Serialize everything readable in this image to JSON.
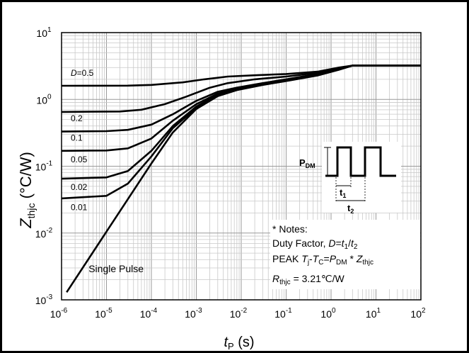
{
  "chart_data": {
    "type": "line",
    "x_scale": "log",
    "y_scale": "log",
    "xlim": [
      1e-06,
      100
    ],
    "ylim": [
      0.001,
      10
    ],
    "grid": true,
    "x_ticks": [
      {
        "base": "10",
        "exp": "-6"
      },
      {
        "base": "10",
        "exp": "-5"
      },
      {
        "base": "10",
        "exp": "-4"
      },
      {
        "base": "10",
        "exp": "-3"
      },
      {
        "base": "10",
        "exp": "-2"
      },
      {
        "base": "10",
        "exp": "-1"
      },
      {
        "base": "10",
        "exp": "0"
      },
      {
        "base": "10",
        "exp": "1"
      },
      {
        "base": "10",
        "exp": "2"
      }
    ],
    "y_ticks": [
      {
        "base": "10",
        "exp": "-3"
      },
      {
        "base": "10",
        "exp": "-2"
      },
      {
        "base": "10",
        "exp": "-1"
      },
      {
        "base": "10",
        "exp": "0"
      },
      {
        "base": "10",
        "exp": "1"
      }
    ],
    "xlabel": {
      "t": "t",
      "sub": "P",
      "rest": " (s)"
    },
    "ylabel": {
      "z": "Z",
      "sub": "thjc",
      "rest": " (°C/W)"
    },
    "series": [
      {
        "name": "D=0.5",
        "x": [
          1e-06,
          3e-05,
          0.0001,
          0.0005,
          0.0015,
          0.005,
          0.02,
          0.1,
          0.5,
          1.5,
          3,
          100
        ],
        "y": [
          1.6,
          1.61,
          1.65,
          1.8,
          2.0,
          2.2,
          2.3,
          2.4,
          2.6,
          3.0,
          3.21,
          3.21
        ]
      },
      {
        "name": "0.2",
        "x": [
          1e-06,
          2e-05,
          6e-05,
          0.0002,
          0.0006,
          0.002,
          0.005,
          0.02,
          0.1,
          0.5,
          1.5,
          3,
          100
        ],
        "y": [
          0.65,
          0.66,
          0.7,
          0.85,
          1.1,
          1.5,
          1.75,
          2.0,
          2.2,
          2.5,
          2.95,
          3.21,
          3.21
        ]
      },
      {
        "name": "0.1",
        "x": [
          1e-06,
          1e-05,
          3e-05,
          0.0001,
          0.0003,
          0.001,
          0.003,
          0.008,
          0.03,
          0.1,
          0.5,
          1.5,
          3,
          100
        ],
        "y": [
          0.33,
          0.335,
          0.35,
          0.42,
          0.6,
          0.95,
          1.3,
          1.5,
          1.75,
          2.0,
          2.4,
          2.9,
          3.21,
          3.21
        ]
      },
      {
        "name": "0.05",
        "x": [
          1e-06,
          1e-05,
          3e-05,
          0.0001,
          0.0003,
          0.001,
          0.003,
          0.008,
          0.03,
          0.1,
          0.5,
          1.5,
          3,
          100
        ],
        "y": [
          0.17,
          0.172,
          0.185,
          0.26,
          0.48,
          0.85,
          1.22,
          1.45,
          1.7,
          1.95,
          2.35,
          2.85,
          3.21,
          3.21
        ]
      },
      {
        "name": "0.02",
        "x": [
          1e-06,
          1e-05,
          3e-05,
          0.0001,
          0.0003,
          0.001,
          0.003,
          0.008,
          0.03,
          0.1,
          0.5,
          1.5,
          3,
          100
        ],
        "y": [
          0.065,
          0.068,
          0.085,
          0.17,
          0.4,
          0.78,
          1.18,
          1.42,
          1.68,
          1.92,
          2.32,
          2.82,
          3.21,
          3.21
        ]
      },
      {
        "name": "0.01",
        "x": [
          1e-06,
          1e-05,
          3e-05,
          0.0001,
          0.0003,
          0.001,
          0.003,
          0.008,
          0.03,
          0.1,
          0.5,
          1.5,
          3,
          100
        ],
        "y": [
          0.033,
          0.036,
          0.055,
          0.14,
          0.37,
          0.75,
          1.15,
          1.4,
          1.66,
          1.9,
          2.3,
          2.8,
          3.21,
          3.21
        ]
      },
      {
        "name": "Single Pulse",
        "x": [
          1.3e-06,
          1e-05,
          0.0001,
          0.0003,
          0.001,
          0.003,
          0.008,
          0.03,
          0.1,
          0.5,
          1.5,
          3,
          100
        ],
        "y": [
          0.0013,
          0.0105,
          0.11,
          0.32,
          0.72,
          1.12,
          1.38,
          1.65,
          1.88,
          2.28,
          2.78,
          3.21,
          3.21
        ]
      }
    ],
    "series_labels": [
      {
        "text_italic": "D",
        "text": "=0.5",
        "x": 1.6e-06,
        "y": 2.25
      },
      {
        "text": "0.2",
        "x": 1.6e-06,
        "y": 0.47
      },
      {
        "text": "0.1",
        "x": 1.6e-06,
        "y": 0.24
      },
      {
        "text": "0.05",
        "x": 1.6e-06,
        "y": 0.115
      },
      {
        "text": "0.02",
        "x": 1.6e-06,
        "y": 0.044
      },
      {
        "text": "0.01",
        "x": 1.6e-06,
        "y": 0.022
      },
      {
        "text": "Single Pulse",
        "x": 4e-06,
        "y": 0.0026
      }
    ],
    "inset": {
      "pdm_label": "P",
      "pdm_sub": "DM",
      "t1_label": "t",
      "t1_sub": "1",
      "t2_label": "t",
      "t2_sub": "2"
    },
    "notes": {
      "line1": "* Notes:",
      "line2_a": "Duty Factor, ",
      "line2_b": "D",
      "line2_c": "=",
      "line2_d": "t",
      "line2_e": "1",
      "line2_f": "/",
      "line2_g": "t",
      "line2_h": "2",
      "line3_a": "PEAK ",
      "line3_b": "T",
      "line3_c": "j",
      "line3_d": "-",
      "line3_e": "T",
      "line3_f": "C",
      "line3_g": "=",
      "line3_h": "P",
      "line3_i": "DM",
      "line3_j": " * ",
      "line3_k": "Z",
      "line3_l": "thjc",
      "line4_a": "R",
      "line4_b": "thjc",
      "line4_c": " = 3.21℃/W"
    },
    "colors": {
      "curve": "#000000",
      "grid_major": "#9a9a9a",
      "grid_minor": "#c8c8c8",
      "frame": "#000000"
    }
  }
}
